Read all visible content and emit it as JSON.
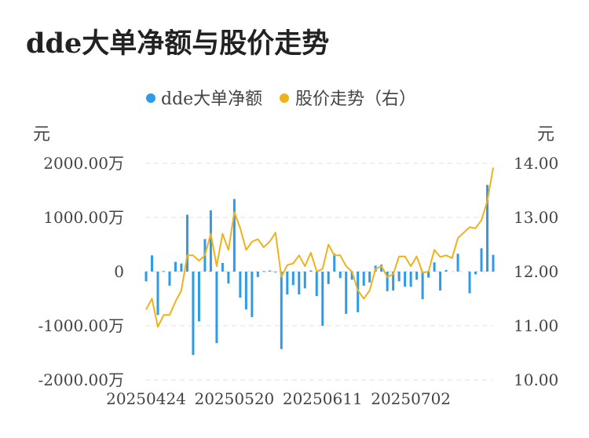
{
  "chart_data": {
    "type": "bar+line",
    "title": "dde大单净额与股价走势",
    "legend": {
      "position": "top-center",
      "entries": [
        "dde大单净额",
        "股价走势（右）"
      ]
    },
    "colors": {
      "bar": "#2e9be8",
      "line": "#f0b21a",
      "grid": "#e6e6e6",
      "text": "#444444"
    },
    "y_left": {
      "label": "元",
      "ylim": [
        -2000,
        2000
      ],
      "ticks": [
        2000,
        1000,
        0,
        -1000,
        -2000
      ],
      "tick_labels": [
        "2000.00万",
        "1000.00万",
        "0",
        "-1000.00万",
        "-2000.00万"
      ]
    },
    "y_right": {
      "label": "元",
      "ylim": [
        10,
        14
      ],
      "ticks": [
        14,
        13,
        12,
        11,
        10
      ],
      "tick_labels": [
        "14.00",
        "13.00",
        "12.00",
        "11.00",
        "10.00"
      ]
    },
    "x_tick_labels": [
      {
        "index": 0,
        "label": "20250424"
      },
      {
        "index": 15,
        "label": "20250520"
      },
      {
        "index": 30,
        "label": "20250611"
      },
      {
        "index": 45,
        "label": "20250702"
      }
    ],
    "series": [
      {
        "name": "dde大单净额",
        "type": "bar",
        "axis": "left",
        "values": [
          -180,
          300,
          -800,
          10,
          -260,
          180,
          150,
          1050,
          -1540,
          -920,
          600,
          1130,
          -1320,
          160,
          -220,
          1340,
          -480,
          -700,
          -840,
          -100,
          10,
          20,
          -10,
          -1430,
          -420,
          -250,
          -420,
          -310,
          20,
          -450,
          -1000,
          -230,
          330,
          -120,
          -780,
          -150,
          -750,
          -260,
          -200,
          110,
          130,
          -360,
          -350,
          -180,
          -280,
          -280,
          -150,
          -510,
          -110,
          170,
          -350,
          30,
          0,
          330,
          0,
          -400,
          -50,
          430,
          1600,
          310
        ],
        "unit": "万"
      },
      {
        "name": "股价走势（右）",
        "type": "line",
        "axis": "right",
        "values": [
          11.3,
          11.5,
          10.98,
          11.2,
          11.2,
          11.45,
          11.65,
          12.3,
          12.3,
          12.2,
          12.3,
          12.7,
          12.1,
          12.7,
          12.4,
          13.1,
          12.8,
          12.4,
          12.55,
          12.6,
          12.45,
          12.55,
          12.72,
          11.9,
          12.12,
          12.15,
          12.3,
          12.1,
          12.35,
          12.0,
          12.05,
          12.5,
          12.3,
          12.3,
          12.1,
          12.0,
          11.65,
          11.5,
          11.65,
          12.05,
          12.1,
          11.9,
          11.95,
          12.28,
          12.28,
          12.1,
          12.28,
          11.98,
          12.0,
          12.4,
          12.27,
          12.3,
          12.25,
          12.62,
          12.72,
          12.82,
          12.8,
          12.95,
          13.3,
          13.92
        ]
      }
    ]
  }
}
